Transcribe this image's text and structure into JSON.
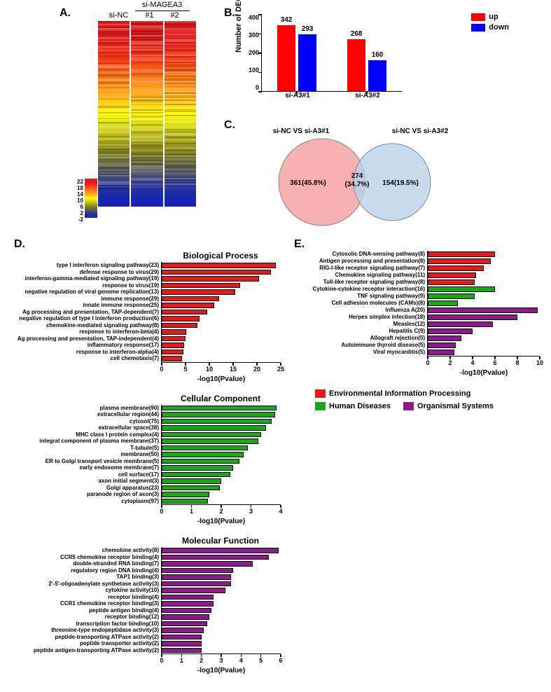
{
  "A": {
    "labels": {
      "siNC": "si-NC",
      "siMAGEA3": "si-MAGEA3",
      "n1": "#1",
      "n2": "#2"
    },
    "colorbar_ticks": [
      "22",
      "18",
      "14",
      "10",
      "6",
      "2",
      "-2"
    ],
    "gradient": [
      "#e11b1b",
      "#e11b1b",
      "#ff3a1a",
      "#ff7a1a",
      "#ffae1a",
      "#ffff00",
      "#c7c71a",
      "#8a8a1a",
      "#5a5a5a",
      "#2330a0",
      "#1420c0"
    ],
    "column_count": 3
  },
  "B": {
    "title": "",
    "ylabel": "Number of DEGs",
    "ylim": [
      0,
      400
    ],
    "yticks": [
      0,
      100,
      200,
      300,
      400
    ],
    "categories": [
      "si-A3#1",
      "si-A3#2"
    ],
    "series": [
      {
        "name": "up",
        "color": "#ff0000"
      },
      {
        "name": "down",
        "color": "#0000ff"
      }
    ],
    "values": [
      [
        342,
        268
      ],
      [
        293,
        160
      ]
    ],
    "label_fontsize": 10,
    "axis_color": "#000",
    "bar_group_width": 0.6
  },
  "C": {
    "left_label": "si-NC VS si-A3#1",
    "right_label": "si-NC VS si-A3#2",
    "left": "361(45.8%)",
    "mid_top": "274",
    "mid_bot": "(34.7%)",
    "right": "154(19.5%)",
    "left_color": "#f6a3a3",
    "right_color": "#b9d3eb",
    "stroke": "#7a7a7a"
  },
  "D": {
    "charts": [
      {
        "title": "Biological Process",
        "xlabel": "-log10(Pvalue)",
        "color": "#e11b1b",
        "xlim": [
          0,
          25
        ],
        "xticks": [
          0,
          5,
          10,
          15,
          20,
          25
        ],
        "items": [
          {
            "label": "type I interferon signaling pathway(23)",
            "val": 24
          },
          {
            "label": "defense response to virus(29)",
            "val": 23
          },
          {
            "label": "interferon-gamma-mediated signaling pathway(19)",
            "val": 20.5
          },
          {
            "label": "response to virus(19)",
            "val": 16.5
          },
          {
            "label": "negative regulation of viral genome replication(13)",
            "val": 15.5
          },
          {
            "label": "immune response(29)",
            "val": 12
          },
          {
            "label": "innate immune response(25)",
            "val": 11
          },
          {
            "label": "Ag processing and presentation, TAP-dependent(7)",
            "val": 9.5
          },
          {
            "label": "negative regulation of type I interferon production(6)",
            "val": 8
          },
          {
            "label": "chemokine-mediated signaling pathway(8)",
            "val": 7.5
          },
          {
            "label": "response to interferon-beta(4)",
            "val": 5.2
          },
          {
            "label": "Ag processing and presentation, TAP-independent(4)",
            "val": 5
          },
          {
            "label": "inflammatory response(17)",
            "val": 4.7
          },
          {
            "label": "response to interferon-alpha(4)",
            "val": 4.5
          },
          {
            "label": "cell chemotaxis(7)",
            "val": 4.3
          }
        ]
      },
      {
        "title": "Cellular Component",
        "xlabel": "-log10(Pvalue)",
        "color": "#1ca61c",
        "xlim": [
          0,
          4
        ],
        "xticks": [
          0,
          1,
          2,
          3,
          4
        ],
        "items": [
          {
            "label": "plasma membrane(90)",
            "val": 3.85
          },
          {
            "label": "extracellular region(44)",
            "val": 3.8
          },
          {
            "label": "cytosol(75)",
            "val": 3.7
          },
          {
            "label": "extracellular space(38)",
            "val": 3.5
          },
          {
            "label": "MHC class I protein complex(4)",
            "val": 3.35
          },
          {
            "label": "integral component of plasma membrane(37)",
            "val": 3.25
          },
          {
            "label": "T-tubule(5)",
            "val": 2.9
          },
          {
            "label": "membrane(50)",
            "val": 2.75
          },
          {
            "label": "ER to Golgi transport vesicle membrane(5)",
            "val": 2.6
          },
          {
            "label": "early endosome membrane(7)",
            "val": 2.4
          },
          {
            "label": "cell surface(17)",
            "val": 2.3
          },
          {
            "label": "axon initial segment(3)",
            "val": 2.0
          },
          {
            "label": "Golgi apparatus(23)",
            "val": 1.95
          },
          {
            "label": "paranode region of axon(3)",
            "val": 1.6
          },
          {
            "label": "cytoplasm(97)",
            "val": 1.55
          }
        ]
      },
      {
        "title": "Molecular Function",
        "xlabel": "-log10(Pvalue)",
        "color": "#8b1a8b",
        "xlim": [
          0,
          6
        ],
        "xticks": [
          0,
          1,
          2,
          3,
          4,
          5,
          6
        ],
        "items": [
          {
            "label": "chemokine activity(8)",
            "val": 5.9
          },
          {
            "label": "CCR5 chemokine receptor binding(4)",
            "val": 5.4
          },
          {
            "label": "double-stranded RNA binding(7)",
            "val": 4.6
          },
          {
            "label": "regulatory region DNA binding(4)",
            "val": 3.6
          },
          {
            "label": "TAP1 binding(3)",
            "val": 3.5
          },
          {
            "label": "2'-5'-oligoadenylate synthetase activity(3)",
            "val": 3.5
          },
          {
            "label": "cytokine activity(10)",
            "val": 3.2
          },
          {
            "label": "receptor binding(4)",
            "val": 2.6
          },
          {
            "label": "CCR1 chemokine receptor binding(3)",
            "val": 2.6
          },
          {
            "label": "peptide antigen binding(4)",
            "val": 2.5
          },
          {
            "label": "receptor binding(12)",
            "val": 2.4
          },
          {
            "label": "transcription factor binding(10)",
            "val": 2.3
          },
          {
            "label": "threonine-type endopeptidase activity(3)",
            "val": 2.1
          },
          {
            "label": "peptide-transporting ATPase activity(2)",
            "val": 2.0
          },
          {
            "label": "peptide transporter activity(2)",
            "val": 2.0
          },
          {
            "label": "peptide antigen-transporting ATPase activity(2)",
            "val": 2.0
          }
        ]
      }
    ]
  },
  "E": {
    "xlabel": "-log10(Pvalue)",
    "xlim": [
      0,
      10
    ],
    "xticks": [
      0,
      2,
      4,
      6,
      8,
      10
    ],
    "items": [
      {
        "label": "Cytosolic DNA-sensing pathway(8)",
        "val": 6.0,
        "color": "#e11b1b"
      },
      {
        "label": "Antigen processing and presentation(8)",
        "val": 5.6,
        "color": "#e11b1b"
      },
      {
        "label": "RIG-I-like receptor signaling pathway(7)",
        "val": 5.0,
        "color": "#e11b1b"
      },
      {
        "label": "Chemokine signaling pathway(11)",
        "val": 4.3,
        "color": "#e11b1b"
      },
      {
        "label": "Toll-like receptor signaling pathway(8)",
        "val": 4.2,
        "color": "#e11b1b"
      },
      {
        "label": "Cytokine-cytokine receptor interaction(16)",
        "val": 6.0,
        "color": "#1ca61c"
      },
      {
        "label": "TNF signaling pathway(9)",
        "val": 4.2,
        "color": "#1ca61c"
      },
      {
        "label": "Cell adhesion molecules (CAMs)(8)",
        "val": 2.7,
        "color": "#1ca61c"
      },
      {
        "label": "Influenza A(20)",
        "val": 9.8,
        "color": "#8b1a8b"
      },
      {
        "label": "Herpes simplex infection(18)",
        "val": 8.0,
        "color": "#8b1a8b"
      },
      {
        "label": "Measles(12)",
        "val": 5.8,
        "color": "#8b1a8b"
      },
      {
        "label": "Hepatitis C(9)",
        "val": 4.0,
        "color": "#8b1a8b"
      },
      {
        "label": "Allograft rejection(5)",
        "val": 3.0,
        "color": "#8b1a8b"
      },
      {
        "label": "Autoimmune thyroid disease(5)",
        "val": 2.5,
        "color": "#8b1a8b"
      },
      {
        "label": "Viral myocarditis(5)",
        "val": 2.4,
        "color": "#8b1a8b"
      }
    ],
    "legend": [
      {
        "label": "Environmental Information Processing",
        "color": "#e11b1b"
      },
      {
        "label": "Human Diseases",
        "color": "#1ca61c"
      },
      {
        "label": "Organismal Systems",
        "color": "#8b1a8b"
      }
    ]
  }
}
